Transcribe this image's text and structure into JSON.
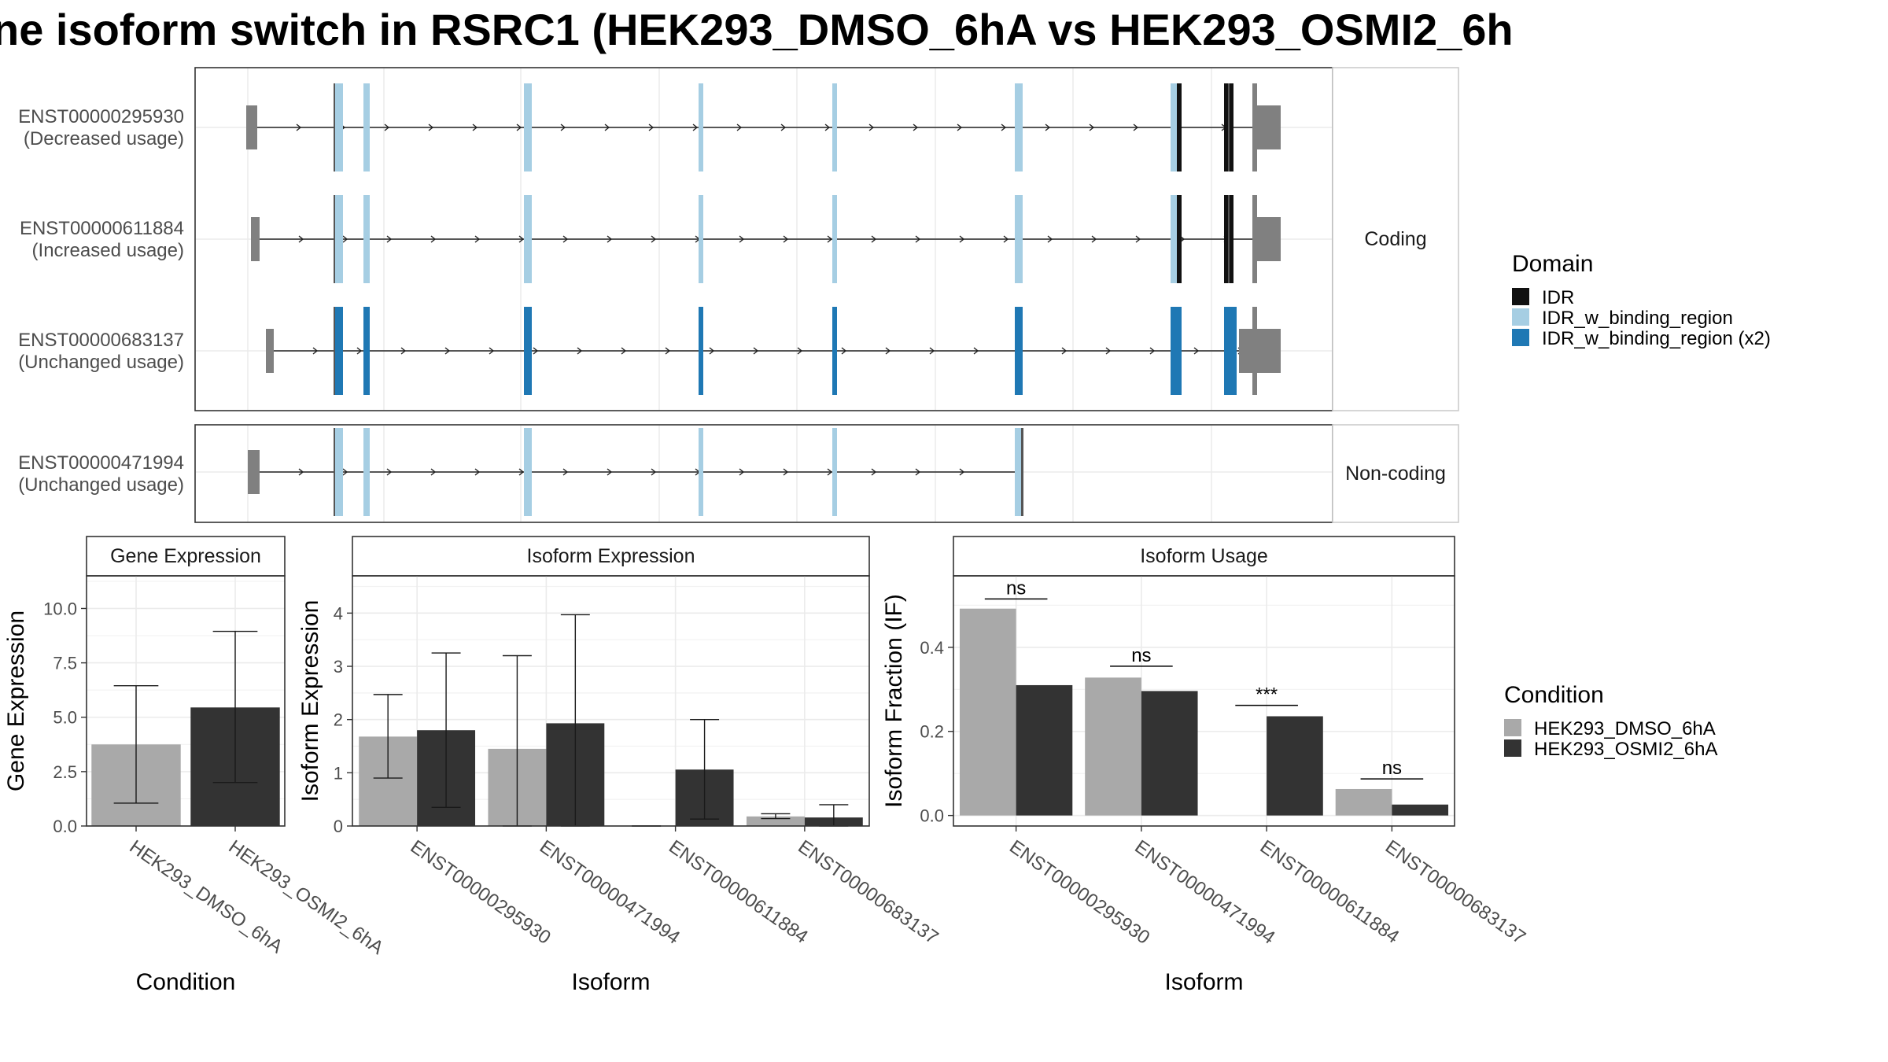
{
  "title": "ne isoform switch in RSRC1 (HEK293_DMSO_6hA vs HEK293_OSMI2_6h",
  "structure": {
    "strips": [
      "Coding",
      "Non-coding"
    ],
    "transcripts": [
      {
        "id": "ENST00000295930",
        "usage": "(Decreased usage)",
        "group": "Coding",
        "fill": "light"
      },
      {
        "id": "ENST00000611884",
        "usage": "(Increased usage)",
        "group": "Coding",
        "fill": "light"
      },
      {
        "id": "ENST00000683137",
        "usage": "(Unchanged usage)",
        "group": "Coding",
        "fill": "dark"
      },
      {
        "id": "ENST00000471994",
        "usage": "(Unchanged usage)",
        "group": "Non-coding",
        "fill": "light"
      }
    ],
    "domain_legend": {
      "title": "Domain",
      "items": [
        {
          "label": "IDR",
          "color": "#111111"
        },
        {
          "label": "IDR_w_binding_region",
          "color": "#a6cee3"
        },
        {
          "label": "IDR_w_binding_region (x2)",
          "color": "#1f78b4"
        }
      ]
    }
  },
  "condition_legend": {
    "title": "Condition",
    "items": [
      {
        "label": "HEK293_DMSO_6hA",
        "color": "#a9a9a9"
      },
      {
        "label": "HEK293_OSMI2_6hA",
        "color": "#333333"
      }
    ]
  },
  "chart_data": [
    {
      "type": "bar",
      "title": "Gene Expression",
      "xlabel": "Condition",
      "ylabel": "Gene Expression",
      "ylim": [
        0,
        11.5
      ],
      "yticks": [
        "0.0",
        "2.5",
        "5.0",
        "7.5",
        "10.0"
      ],
      "categories": [
        "HEK293_DMSO_6hA",
        "HEK293_OSMI2_6hA"
      ],
      "values": [
        3.75,
        5.45
      ],
      "err_low": [
        1.05,
        2.0
      ],
      "err_high": [
        6.45,
        8.95
      ]
    },
    {
      "type": "bar",
      "title": "Isoform Expression",
      "xlabel": "Isoform",
      "ylabel": "Isoform Expression",
      "ylim": [
        0,
        4.7
      ],
      "yticks": [
        "0",
        "1",
        "2",
        "3",
        "4"
      ],
      "categories": [
        "ENST00000295930",
        "ENST00000471994",
        "ENST00000611884",
        "ENST00000683137"
      ],
      "series": [
        {
          "name": "HEK293_DMSO_6hA",
          "values": [
            1.68,
            1.45,
            0.0,
            0.18
          ],
          "err_low": [
            0.9,
            0.0,
            0.0,
            0.14
          ],
          "err_high": [
            2.47,
            3.2,
            0.0,
            0.23
          ]
        },
        {
          "name": "HEK293_OSMI2_6hA",
          "values": [
            1.8,
            1.93,
            1.06,
            0.16
          ],
          "err_low": [
            0.35,
            0.0,
            0.13,
            0.0
          ],
          "err_high": [
            3.25,
            3.97,
            2.0,
            0.4
          ]
        }
      ]
    },
    {
      "type": "bar",
      "title": "Isoform Usage",
      "xlabel": "Isoform",
      "ylabel": "Isoform Fraction (IF)",
      "ylim": [
        -0.025,
        0.57
      ],
      "yticks": [
        "0.0",
        "0.2",
        "0.4"
      ],
      "categories": [
        "ENST00000295930",
        "ENST00000471994",
        "ENST00000611884",
        "ENST00000683137"
      ],
      "series": [
        {
          "name": "HEK293_DMSO_6hA",
          "values": [
            0.492,
            0.328,
            0.0,
            0.063
          ]
        },
        {
          "name": "HEK293_OSMI2_6hA",
          "values": [
            0.31,
            0.296,
            0.236,
            0.026
          ]
        }
      ],
      "significance": [
        {
          "label": "ns",
          "level": 0.515
        },
        {
          "label": "ns",
          "level": 0.355
        },
        {
          "label": "***",
          "level": 0.262
        },
        {
          "label": "ns",
          "level": 0.087
        }
      ]
    }
  ]
}
